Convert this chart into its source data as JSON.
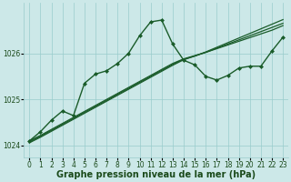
{
  "background_color": "#cce8e8",
  "grid_color": "#99cccc",
  "line_color": "#1a5c2a",
  "marker_color": "#1a5c2a",
  "xlabel": "Graphe pression niveau de la mer (hPa)",
  "xlabel_fontsize": 7,
  "xlabel_color": "#1a4a1a",
  "tick_fontsize": 5.5,
  "tick_color": "#1a4a1a",
  "xlim": [
    -0.5,
    23.5
  ],
  "ylim": [
    1023.75,
    1027.1
  ],
  "yticks": [
    1024,
    1025,
    1026
  ],
  "figsize": [
    3.2,
    2.0
  ],
  "dpi": 100,
  "series": [
    {
      "x": [
        0,
        1,
        2,
        3,
        4,
        5,
        6,
        7,
        8,
        9,
        10,
        11,
        12,
        13,
        14,
        15,
        16,
        17,
        18,
        19,
        20,
        21,
        22,
        23
      ],
      "y": [
        1024.1,
        1024.22,
        1024.35,
        1024.48,
        1024.61,
        1024.74,
        1024.87,
        1025.0,
        1025.13,
        1025.26,
        1025.39,
        1025.52,
        1025.65,
        1025.78,
        1025.88,
        1025.95,
        1026.02,
        1026.1,
        1026.18,
        1026.26,
        1026.34,
        1026.42,
        1026.5,
        1026.6
      ],
      "with_markers": false,
      "linewidth": 0.9
    },
    {
      "x": [
        0,
        1,
        2,
        3,
        4,
        5,
        6,
        7,
        8,
        9,
        10,
        11,
        12,
        13,
        14,
        15,
        16,
        17,
        18,
        19,
        20,
        21,
        22,
        23
      ],
      "y": [
        1024.08,
        1024.2,
        1024.33,
        1024.46,
        1024.59,
        1024.72,
        1024.85,
        1024.98,
        1025.11,
        1025.24,
        1025.37,
        1025.5,
        1025.63,
        1025.76,
        1025.87,
        1025.94,
        1026.02,
        1026.11,
        1026.2,
        1026.29,
        1026.38,
        1026.47,
        1026.56,
        1026.65
      ],
      "with_markers": false,
      "linewidth": 0.9
    },
    {
      "x": [
        0,
        1,
        2,
        3,
        4,
        5,
        6,
        7,
        8,
        9,
        10,
        11,
        12,
        13,
        14,
        15,
        16,
        17,
        18,
        19,
        20,
        21,
        22,
        23
      ],
      "y": [
        1024.06,
        1024.18,
        1024.31,
        1024.44,
        1024.57,
        1024.7,
        1024.83,
        1024.96,
        1025.09,
        1025.22,
        1025.35,
        1025.48,
        1025.61,
        1025.74,
        1025.86,
        1025.94,
        1026.03,
        1026.13,
        1026.23,
        1026.33,
        1026.43,
        1026.53,
        1026.63,
        1026.73
      ],
      "with_markers": false,
      "linewidth": 0.9
    },
    {
      "x": [
        0,
        1,
        2,
        3,
        4,
        5,
        6,
        7,
        8,
        9,
        10,
        11,
        12,
        13,
        14,
        15,
        16,
        17,
        18,
        19,
        20,
        21,
        22,
        23
      ],
      "y": [
        1024.1,
        1024.3,
        1024.55,
        1024.75,
        1024.65,
        1025.35,
        1025.55,
        1025.62,
        1025.78,
        1026.0,
        1026.38,
        1026.68,
        1026.72,
        1026.2,
        1025.85,
        1025.75,
        1025.5,
        1025.42,
        1025.52,
        1025.68,
        1025.72,
        1025.72,
        1026.05,
        1026.35
      ],
      "with_markers": true,
      "linewidth": 1.0
    }
  ]
}
